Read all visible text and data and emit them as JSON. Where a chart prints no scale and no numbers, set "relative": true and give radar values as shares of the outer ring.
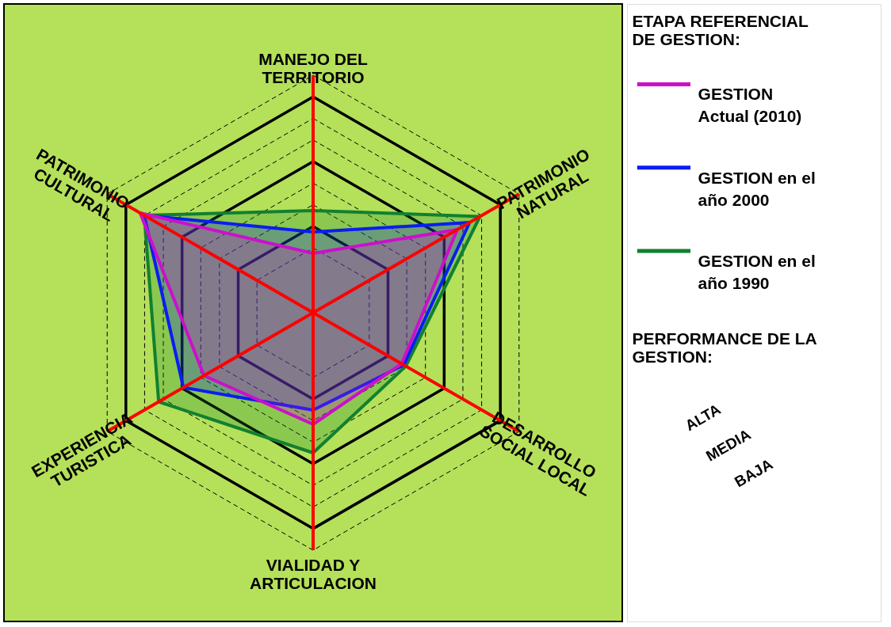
{
  "chart_data": {
    "type": "radar",
    "relative": true,
    "legend_title": "ETAPA REFERENCIAL DE GESTION:",
    "legend": "right",
    "categories": [
      "MANEJO DEL TERRITORIO",
      "PATRIMONIO NATURAL",
      "DESARROLLO SOCIAL LOCAL",
      "VIALIDAD Y ARTICULACION",
      "EXPERIENCIA TURISTICA",
      "PATRIMONIO CULTURAL"
    ],
    "series": [
      {
        "name": "GESTION en el año 1990",
        "color": "#118030",
        "values": [
          0.43,
          0.81,
          0.45,
          0.59,
          0.75,
          0.82
        ]
      },
      {
        "name": "GESTION en el año 2000",
        "color": "#0a1ef0",
        "values": [
          0.34,
          0.76,
          0.44,
          0.41,
          0.63,
          0.82
        ]
      },
      {
        "name": "GESTION Actual (2010)",
        "color": "#cc10cc",
        "values": [
          0.25,
          0.7,
          0.43,
          0.47,
          0.53,
          0.84
        ]
      }
    ],
    "annotations": [
      "PERFORMANCE DE LA GESTION:",
      "ALTA",
      "MEDIA",
      "BAJA"
    ]
  }
}
